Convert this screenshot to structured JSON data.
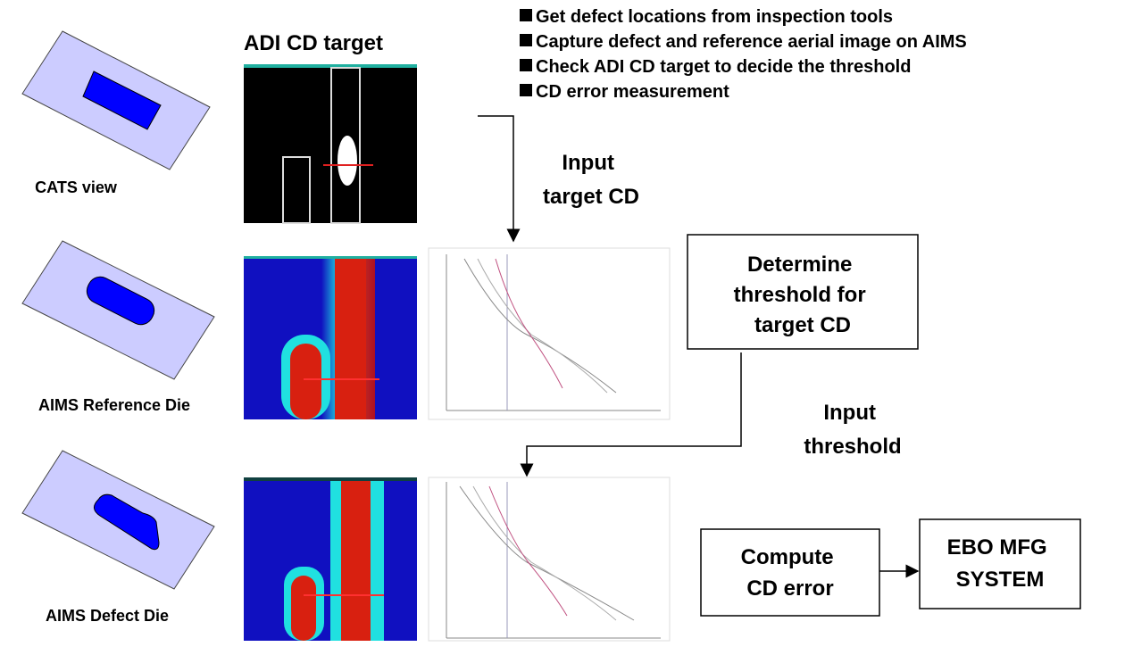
{
  "bullets": [
    "Get defect locations from inspection tools",
    "Capture defect and reference aerial image on AIMS",
    "Check ADI CD target to decide the threshold",
    "CD error measurement"
  ],
  "adi_title": "ADI CD target",
  "views": [
    {
      "label": "CATS view"
    },
    {
      "label": "AIMS Reference Die"
    },
    {
      "label": "AIMS Defect Die"
    }
  ],
  "steps": {
    "input_target": [
      "Input",
      "target CD"
    ],
    "determine": [
      "Determine",
      "threshold for",
      "target CD"
    ],
    "input_threshold": [
      "Input",
      "threshold"
    ],
    "compute": [
      "Compute",
      "CD error"
    ],
    "ebo": [
      "EBO MFG",
      "SYSTEM"
    ]
  }
}
